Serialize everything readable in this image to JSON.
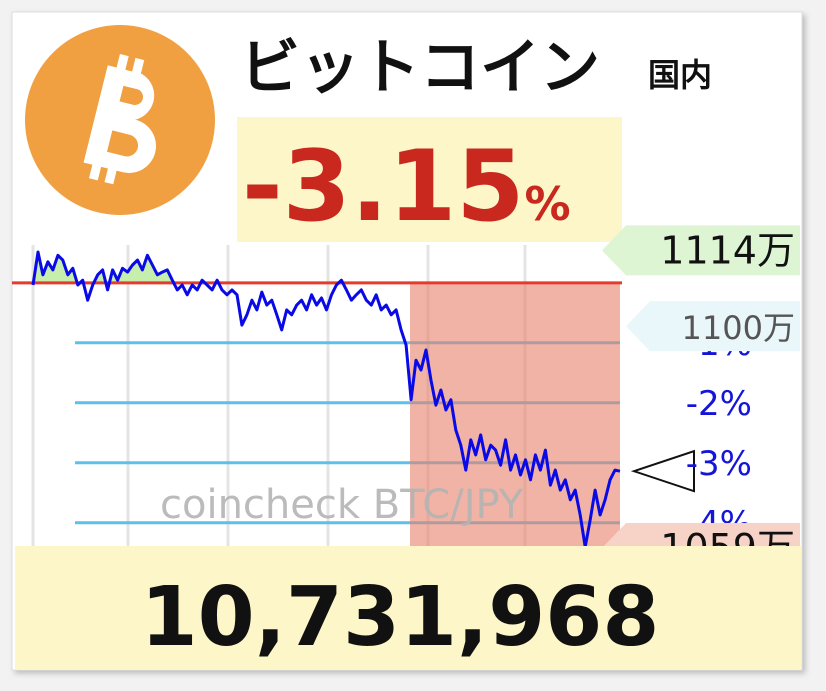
{
  "chart_data": {
    "type": "line",
    "title": "ビットコイン",
    "subtitle": "国内",
    "change_value": "-3.15",
    "change_unit": "%",
    "price": "10,731,968",
    "watermark": "coincheck BTC/JPY",
    "color": "#0a0ae6",
    "baseline": 1108,
    "baseline_color": "#e53a2e",
    "values": [
      1107.6,
      1113.7,
      1109.5,
      1111.9,
      1110.4,
      1113.1,
      1112.2,
      1109.5,
      1110.7,
      1107.6,
      1108.5,
      1104.8,
      1107.6,
      1109.5,
      1110.4,
      1106.7,
      1110.4,
      1108.5,
      1110.7,
      1110.0,
      1111.3,
      1112.2,
      1110.4,
      1113.1,
      1111.3,
      1109.5,
      1110.0,
      1110.4,
      1108.5,
      1106.7,
      1107.6,
      1105.8,
      1107.6,
      1106.7,
      1108.5,
      1107.6,
      1106.7,
      1108.5,
      1106.7,
      1105.8,
      1106.7,
      1105.8,
      1100.2,
      1102.1,
      1104.8,
      1103.0,
      1106.3,
      1103.9,
      1104.8,
      1102.1,
      1099.3,
      1103.0,
      1102.1,
      1103.9,
      1104.8,
      1103.0,
      1105.8,
      1103.9,
      1105.2,
      1103.0,
      1105.8,
      1107.6,
      1108.5,
      1106.7,
      1104.8,
      1105.8,
      1106.7,
      1104.8,
      1103.9,
      1105.8,
      1103.0,
      1103.9,
      1102.1,
      1103.0,
      1099.3,
      1096.5,
      1086.4,
      1093.7,
      1091.9,
      1095.6,
      1090.0,
      1085.4,
      1088.2,
      1084.5,
      1086.4,
      1080.8,
      1078.0,
      1073.4,
      1079.0,
      1076.2,
      1079.9,
      1075.3,
      1078.0,
      1077.1,
      1074.3,
      1079.0,
      1073.4,
      1076.2,
      1072.5,
      1075.3,
      1071.6,
      1076.2,
      1073.4,
      1077.1,
      1070.6,
      1073.4,
      1069.7,
      1071.6,
      1067.9,
      1069.7,
      1065.1,
      1059.2,
      1064.2,
      1069.7,
      1065.1,
      1067.9,
      1071.6,
      1073.4,
      1073.2
    ],
    "ylim": [
      1059,
      1115
    ],
    "yticks": [
      {
        "value": 1114,
        "label": "1114万"
      },
      {
        "value": 1100,
        "label": "1100万"
      },
      {
        "value": 1059,
        "label": "1059万"
      }
    ],
    "ytick_colors": [
      "#def5d4",
      "#e9f6fa",
      "#f6d3c6"
    ],
    "y2lim": [
      -4.42,
      0.63
    ],
    "y2ticks": [
      {
        "value": -1,
        "label": "-1%"
      },
      {
        "value": -2,
        "label": "-2%"
      },
      {
        "value": -3,
        "label": "-3%"
      },
      {
        "value": -4,
        "label": "-4%"
      }
    ],
    "grid": true
  }
}
